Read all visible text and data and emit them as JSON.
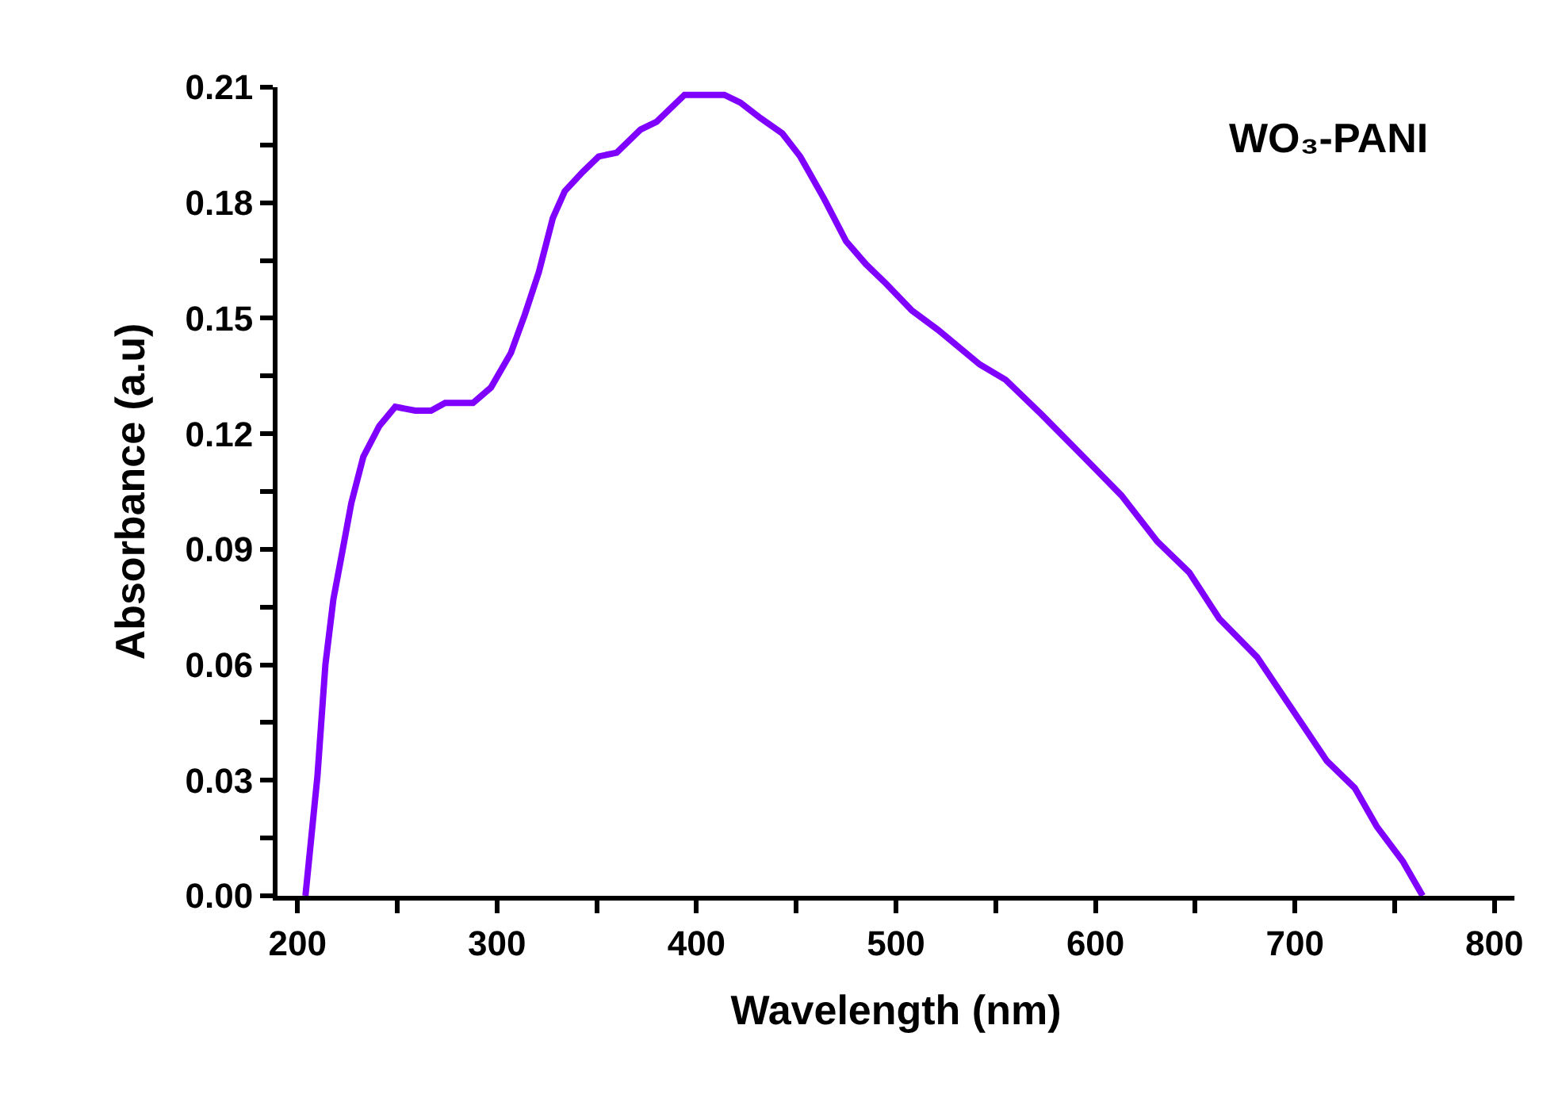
{
  "chart_data": {
    "type": "line",
    "xlabel": "Wavelength (nm)",
    "ylabel": "Absorbance (a.u)",
    "annotations": [
      "WO₃-PANI"
    ],
    "x": [
      204,
      210,
      214,
      218,
      222,
      227,
      233,
      241,
      249,
      259,
      267,
      274,
      288,
      297,
      307,
      314,
      321,
      328,
      334,
      343,
      351,
      360,
      372,
      380,
      394,
      414,
      422,
      432,
      443,
      452,
      464,
      475,
      485,
      495,
      508,
      521,
      542,
      555,
      573,
      594,
      613,
      631,
      647,
      662,
      681,
      694,
      716,
      730,
      741,
      754,
      764
    ],
    "series": [
      {
        "color": "#8000ff",
        "values": [
          0,
          0.031,
          0.06,
          0.077,
          0.088,
          0.102,
          0.114,
          0.122,
          0.127,
          0.126,
          0.126,
          0.128,
          0.128,
          0.132,
          0.141,
          0.151,
          0.162,
          0.176,
          0.183,
          0.188,
          0.192,
          0.193,
          0.199,
          0.201,
          0.208,
          0.208,
          0.206,
          0.202,
          0.198,
          0.192,
          0.181,
          0.17,
          0.164,
          0.159,
          0.152,
          0.147,
          0.138,
          0.134,
          0.125,
          0.114,
          0.104,
          0.092,
          0.084,
          0.072,
          0.062,
          0.052,
          0.035,
          0.028,
          0.018,
          0.009,
          0
        ]
      }
    ],
    "xlim": [
      190,
      810
    ],
    "xticks": [
      200,
      {
        "value": 250,
        "label": null
      },
      300,
      {
        "value": 350,
        "label": null
      },
      400,
      {
        "value": 450,
        "label": null
      },
      500,
      {
        "value": 550,
        "label": null
      },
      600,
      {
        "value": 650,
        "label": null
      },
      700,
      {
        "value": 750,
        "label": null
      },
      800
    ],
    "ylim": [
      0,
      0.21
    ],
    "yticks": [
      "0.00",
      {
        "value": 0.015,
        "label": null
      },
      {
        "value": 0.03,
        "label": "0.03"
      },
      {
        "value": 0.045,
        "label": null
      },
      {
        "value": 0.06,
        "label": "0.06"
      },
      {
        "value": 0.075,
        "label": null
      },
      {
        "value": 0.09,
        "label": "0.09"
      },
      {
        "value": 0.105,
        "label": null
      },
      {
        "value": 0.12,
        "label": "0.12"
      },
      {
        "value": 0.135,
        "label": null
      },
      {
        "value": 0.15,
        "label": "0.15"
      },
      {
        "value": 0.165,
        "label": null
      },
      {
        "value": 0.18,
        "label": "0.18"
      },
      {
        "value": 0.195,
        "label": null
      },
      {
        "value": 0.21,
        "label": "0.21"
      }
    ],
    "grid": false,
    "line_style": "solid",
    "marker": "none"
  }
}
